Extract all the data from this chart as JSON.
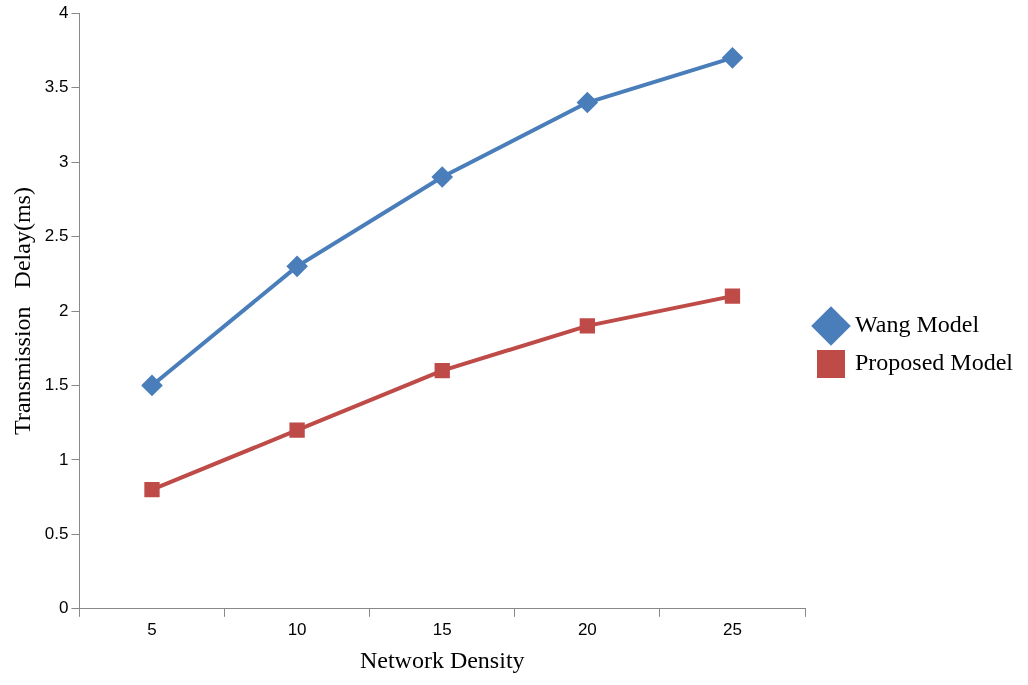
{
  "chart_data": {
    "type": "line",
    "xlabel": "Network Density",
    "ylabel": "Transmission   Delay(ms)",
    "categories": [
      "5",
      "10",
      "15",
      "20",
      "25"
    ],
    "series": [
      {
        "name": "Wang Model",
        "color": "#4a7ebb",
        "marker": "diamond",
        "values": [
          1.5,
          2.3,
          2.9,
          3.4,
          3.7
        ]
      },
      {
        "name": "Proposed Model",
        "color": "#be4b48",
        "marker": "square",
        "values": [
          0.8,
          1.2,
          1.6,
          1.9,
          2.1
        ]
      }
    ],
    "ylim": [
      0,
      4
    ],
    "yticks": [
      0,
      0.5,
      1,
      1.5,
      2,
      2.5,
      3,
      3.5,
      4
    ],
    "grid": false,
    "legend": "right",
    "line_style": "solid"
  }
}
